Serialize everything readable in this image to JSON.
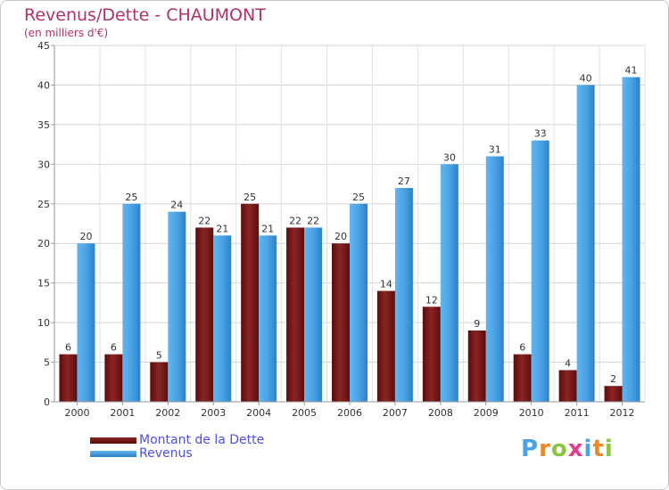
{
  "chart_data": {
    "type": "bar",
    "title": "Revenus/Dette - CHAUMONT",
    "subtitle": "(en milliers d'€)",
    "xlabel": "",
    "ylabel": "",
    "ylim": [
      0,
      45
    ],
    "yticks": [
      0,
      5,
      10,
      15,
      20,
      25,
      30,
      35,
      40,
      45
    ],
    "grid": true,
    "legend_position": "bottom-left",
    "categories": [
      "2000",
      "2001",
      "2002",
      "2003",
      "2004",
      "2005",
      "2006",
      "2007",
      "2008",
      "2009",
      "2010",
      "2011",
      "2012"
    ],
    "series": [
      {
        "name": "Montant de la Dette",
        "color": "#7a1a1a",
        "values": [
          6,
          6,
          5,
          22,
          25,
          22,
          20,
          14,
          12,
          9,
          6,
          4,
          2
        ]
      },
      {
        "name": "Revenus",
        "color": "#4aa3e4",
        "values": [
          20,
          25,
          24,
          21,
          21,
          22,
          25,
          27,
          30,
          31,
          33,
          40,
          41
        ]
      }
    ]
  },
  "logo": {
    "text": "Proxiti",
    "letter_colors": [
      "#4aa3e4",
      "#e8892a",
      "#8cc63f",
      "#e23c8c",
      "#4aa3e4",
      "#e8892a",
      "#8cc63f"
    ]
  }
}
